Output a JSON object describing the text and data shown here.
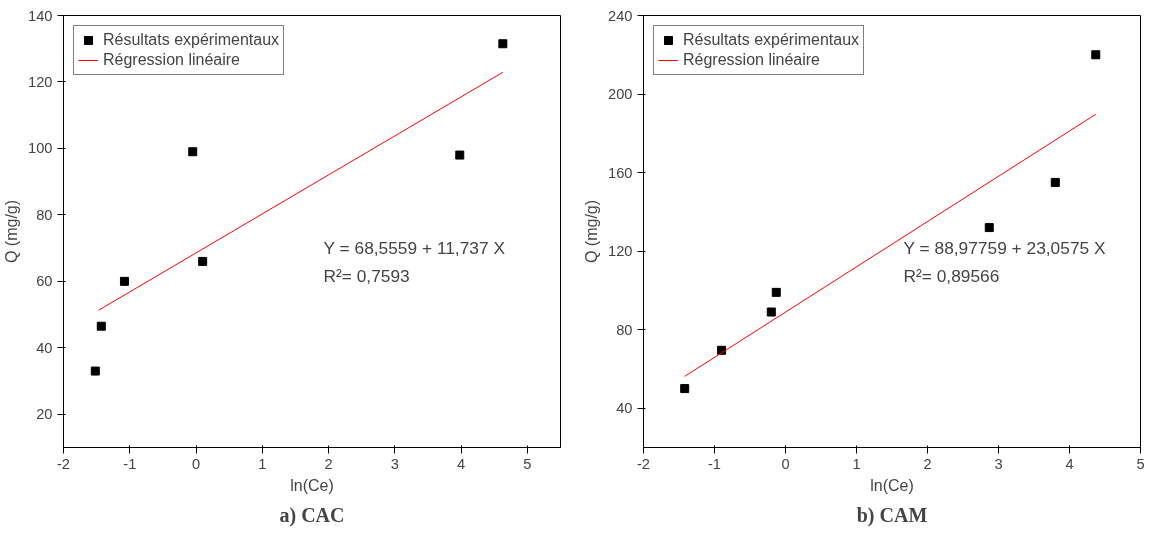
{
  "chart_data": [
    {
      "type": "scatter",
      "title": "a) CAC",
      "xlabel": "ln(Ce)",
      "ylabel": "Q (mg/g)",
      "xlim": [
        -2,
        5.5
      ],
      "xticks": [
        -2,
        -1,
        0,
        1,
        2,
        3,
        4,
        5
      ],
      "ylim": [
        10,
        140
      ],
      "yticks": [
        20,
        40,
        60,
        80,
        100,
        120,
        140
      ],
      "grid": false,
      "legend": "top left",
      "annotations": [
        "Y = 68,5559 + 11,737 X",
        "R²= 0,7593"
      ],
      "series": [
        {
          "name": "Résultats expérimentaux",
          "marker": "square",
          "color": "#000000",
          "x": [
            -1.52,
            -1.43,
            -1.08,
            -0.05,
            0.1,
            3.98,
            4.63
          ],
          "values": [
            33,
            46.5,
            60,
            99,
            66,
            98,
            131.5
          ]
        },
        {
          "name": "Régression linéaire",
          "type": "line",
          "color": "#ff0000",
          "x": [
            -1.47,
            4.63
          ],
          "values": [
            51.3,
            122.9
          ]
        }
      ]
    },
    {
      "type": "scatter",
      "title": "b) CAM",
      "xlabel": "ln(Ce)",
      "ylabel": "Q (mg/g)",
      "xlim": [
        -2,
        5
      ],
      "xticks": [
        -2,
        -1,
        0,
        1,
        2,
        3,
        4,
        5
      ],
      "ylim": [
        20,
        240
      ],
      "yticks": [
        40,
        80,
        120,
        160,
        200,
        240
      ],
      "grid": false,
      "legend": "top left",
      "annotations": [
        "Y = 88,97759 + 23,0575 X",
        "R²= 0,89566"
      ],
      "series": [
        {
          "name": "Résultats expérimentaux",
          "marker": "square",
          "color": "#000000",
          "x": [
            -1.42,
            -0.9,
            -0.2,
            -0.13,
            2.87,
            3.8,
            4.37
          ],
          "values": [
            50,
            69.5,
            89,
            99,
            132,
            155,
            220
          ]
        },
        {
          "name": "Régression linéaire",
          "type": "line",
          "color": "#ff0000",
          "x": [
            -1.42,
            4.37
          ],
          "values": [
            56.2,
            189.7
          ]
        }
      ]
    }
  ]
}
